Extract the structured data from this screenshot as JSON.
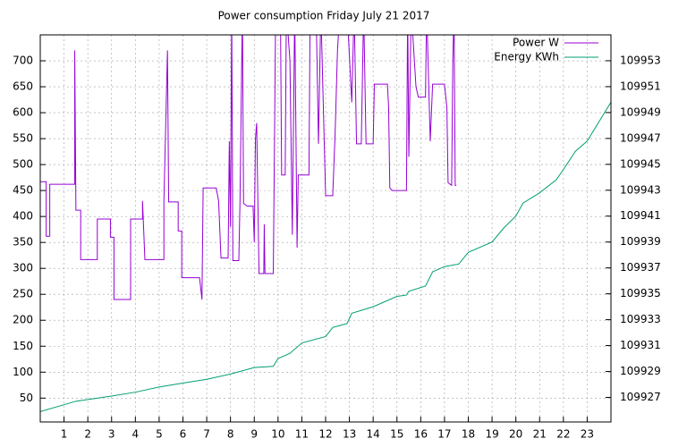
{
  "chart_data": {
    "type": "line",
    "title": "Power consumption Friday July 21 2017",
    "xlim": [
      0,
      24
    ],
    "xticks": [
      1,
      2,
      3,
      4,
      5,
      6,
      7,
      8,
      9,
      10,
      11,
      12,
      13,
      14,
      15,
      16,
      17,
      18,
      19,
      20,
      21,
      22,
      23
    ],
    "ylim": [
      4,
      750
    ],
    "yticks": [
      50,
      100,
      150,
      200,
      250,
      300,
      350,
      400,
      450,
      500,
      550,
      600,
      650,
      700
    ],
    "y2lim": [
      109925.1,
      109955
    ],
    "y2ticks": [
      109927,
      109929,
      109931,
      109933,
      109935,
      109937,
      109939,
      109941,
      109943,
      109945,
      109947,
      109949,
      109951,
      109953
    ],
    "grid": true,
    "legend": "top-right",
    "series": [
      {
        "name": "Power W",
        "color": "#9400d3",
        "x": [
          0,
          0.25,
          0.25,
          0.4,
          0.4,
          1.45,
          1.45,
          1.5,
          1.7,
          1.7,
          2.4,
          2.4,
          2.95,
          2.95,
          3.1,
          3.1,
          3.8,
          3.8,
          4.3,
          4.3,
          4.4,
          5.2,
          5.2,
          5.35,
          5.4,
          5.8,
          5.8,
          5.95,
          5.95,
          6.7,
          6.8,
          6.85,
          7.4,
          7.5,
          7.6,
          7.9,
          7.95,
          8.0,
          8.05,
          8.1,
          8.35,
          8.4,
          8.5,
          8.55,
          8.7,
          8.95,
          9.0,
          9.05,
          9.1,
          9.2,
          9.4,
          9.42,
          9.45,
          9.8,
          9.9,
          10.1,
          10.15,
          10.3,
          10.35,
          10.5,
          10.6,
          10.7,
          10.8,
          10.85,
          11.3,
          11.35,
          11.6,
          11.7,
          11.8,
          12.0,
          12.3,
          12.4,
          12.5,
          12.6,
          12.9,
          13.1,
          13.2,
          13.3,
          13.5,
          13.6,
          13.7,
          14.0,
          14.05,
          14.6,
          14.65,
          14.7,
          14.8,
          15.4,
          15.45,
          15.5,
          15.6,
          15.8,
          15.9,
          16.2,
          16.25,
          16.4,
          16.5,
          17.0,
          17.1,
          17.15,
          17.3,
          17.35,
          17.4,
          17.45,
          17.5
        ],
        "values": [
          467,
          467,
          362,
          362,
          462,
          462,
          720,
          412,
          412,
          317,
          317,
          395,
          395,
          360,
          360,
          240,
          240,
          395,
          395,
          430,
          317,
          317,
          430,
          720,
          428,
          428,
          372,
          372,
          282,
          282,
          240,
          455,
          455,
          430,
          320,
          320,
          545,
          380,
          800,
          315,
          315,
          430,
          800,
          425,
          420,
          420,
          350,
          550,
          580,
          290,
          290,
          385,
          290,
          290,
          800,
          800,
          480,
          480,
          800,
          700,
          365,
          800,
          340,
          480,
          480,
          800,
          800,
          540,
          800,
          440,
          440,
          560,
          720,
          800,
          800,
          620,
          800,
          540,
          540,
          800,
          540,
          540,
          655,
          655,
          610,
          455,
          450,
          450,
          800,
          515,
          800,
          650,
          630,
          630,
          800,
          545,
          655,
          655,
          610,
          465,
          460,
          700,
          800,
          460,
          460
        ]
      },
      {
        "name": "Energy KWh",
        "color": "#009e73",
        "axis": "y2",
        "x": [
          0,
          1.5,
          3,
          4,
          5,
          6,
          7,
          8,
          9,
          9.8,
          10,
          10.5,
          11,
          12,
          12.3,
          12.9,
          13.1,
          14,
          15,
          15.4,
          15.5,
          16.2,
          16.5,
          17,
          17.6,
          18,
          19,
          19.5,
          20,
          20.3,
          21,
          21.7,
          22,
          22.5,
          23,
          23.4,
          24
        ],
        "values": [
          109925.9,
          109926.7,
          109927.1,
          109927.4,
          109927.8,
          109928.1,
          109928.4,
          109928.8,
          109929.3,
          109929.4,
          109930.0,
          109930.4,
          109931.2,
          109931.7,
          109932.4,
          109932.7,
          109933.5,
          109934.0,
          109934.8,
          109934.9,
          109935.2,
          109935.6,
          109936.7,
          109937.1,
          109937.3,
          109938.2,
          109939.0,
          109940.1,
          109941.0,
          109942.0,
          109942.8,
          109943.8,
          109944.6,
          109946.0,
          109946.8,
          109948.0,
          109949.8
        ]
      }
    ]
  }
}
